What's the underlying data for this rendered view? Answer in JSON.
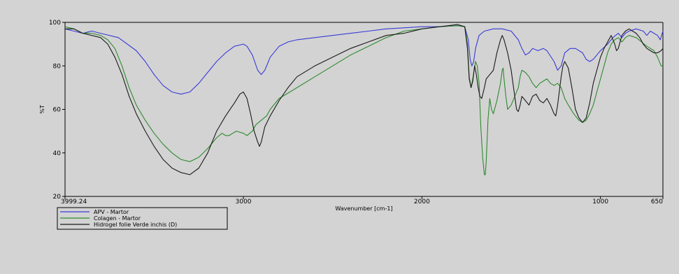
{
  "chart_data": {
    "type": "line",
    "title": "",
    "xlabel": "Wavenumber [cm-1]",
    "ylabel": "%T",
    "x_reversed": true,
    "xlim": [
      3999.24,
      650
    ],
    "ylim": [
      20,
      100
    ],
    "x_ticks": [
      {
        "value": 3999.24,
        "label": "3999.24"
      },
      {
        "value": 3000,
        "label": "3000"
      },
      {
        "value": 2000,
        "label": "2000"
      },
      {
        "value": 1000,
        "label": "1000"
      },
      {
        "value": 650,
        "label": "650"
      }
    ],
    "y_ticks": [
      {
        "value": 20,
        "label": "20"
      },
      {
        "value": 40,
        "label": "40"
      },
      {
        "value": 60,
        "label": "60"
      },
      {
        "value": 80,
        "label": "80"
      },
      {
        "value": 100,
        "label": "100"
      }
    ],
    "grid": false,
    "legend_position": "below-left",
    "series": [
      {
        "name": "APV - Martor",
        "color": "#3a3ad8",
        "points": [
          [
            3999,
            97
          ],
          [
            3950,
            96
          ],
          [
            3900,
            95
          ],
          [
            3850,
            96
          ],
          [
            3800,
            95
          ],
          [
            3700,
            93
          ],
          [
            3600,
            87
          ],
          [
            3550,
            82
          ],
          [
            3500,
            76
          ],
          [
            3450,
            71
          ],
          [
            3400,
            68
          ],
          [
            3350,
            67
          ],
          [
            3300,
            68
          ],
          [
            3250,
            72
          ],
          [
            3200,
            77
          ],
          [
            3150,
            82
          ],
          [
            3100,
            86
          ],
          [
            3050,
            89
          ],
          [
            3000,
            90
          ],
          [
            2980,
            89
          ],
          [
            2950,
            85
          ],
          [
            2920,
            78
          ],
          [
            2900,
            76
          ],
          [
            2880,
            78
          ],
          [
            2850,
            84
          ],
          [
            2800,
            89
          ],
          [
            2750,
            91
          ],
          [
            2700,
            92
          ],
          [
            2600,
            93
          ],
          [
            2500,
            94
          ],
          [
            2400,
            95
          ],
          [
            2300,
            96
          ],
          [
            2200,
            97
          ],
          [
            2100,
            97.5
          ],
          [
            2000,
            98
          ],
          [
            1900,
            98
          ],
          [
            1800,
            98.5
          ],
          [
            1760,
            98
          ],
          [
            1740,
            92
          ],
          [
            1730,
            83
          ],
          [
            1720,
            80
          ],
          [
            1710,
            82
          ],
          [
            1700,
            88
          ],
          [
            1680,
            94
          ],
          [
            1650,
            96
          ],
          [
            1600,
            97
          ],
          [
            1550,
            97
          ],
          [
            1500,
            96
          ],
          [
            1460,
            92
          ],
          [
            1440,
            88
          ],
          [
            1420,
            85
          ],
          [
            1400,
            86
          ],
          [
            1380,
            88
          ],
          [
            1350,
            87
          ],
          [
            1320,
            88
          ],
          [
            1300,
            87
          ],
          [
            1260,
            82
          ],
          [
            1240,
            78
          ],
          [
            1220,
            80
          ],
          [
            1200,
            86
          ],
          [
            1170,
            88
          ],
          [
            1140,
            88
          ],
          [
            1100,
            86
          ],
          [
            1080,
            83
          ],
          [
            1060,
            82
          ],
          [
            1040,
            83
          ],
          [
            1020,
            85
          ],
          [
            1000,
            87
          ],
          [
            960,
            90
          ],
          [
            930,
            93
          ],
          [
            900,
            95
          ],
          [
            880,
            93
          ],
          [
            860,
            95
          ],
          [
            840,
            96
          ],
          [
            800,
            97
          ],
          [
            760,
            96
          ],
          [
            740,
            94
          ],
          [
            720,
            96
          ],
          [
            700,
            95
          ],
          [
            680,
            94
          ],
          [
            665,
            92
          ],
          [
            650,
            96
          ]
        ]
      },
      {
        "name": "Colagen - Martor",
        "color": "#2e8a2e",
        "points": [
          [
            3999,
            98
          ],
          [
            3950,
            97
          ],
          [
            3900,
            95
          ],
          [
            3850,
            95
          ],
          [
            3800,
            94
          ],
          [
            3760,
            92
          ],
          [
            3720,
            88
          ],
          [
            3680,
            80
          ],
          [
            3640,
            70
          ],
          [
            3600,
            62
          ],
          [
            3550,
            55
          ],
          [
            3500,
            49
          ],
          [
            3450,
            44
          ],
          [
            3400,
            40
          ],
          [
            3350,
            37
          ],
          [
            3300,
            36
          ],
          [
            3250,
            38
          ],
          [
            3200,
            42
          ],
          [
            3150,
            47
          ],
          [
            3120,
            49
          ],
          [
            3100,
            48
          ],
          [
            3080,
            48
          ],
          [
            3060,
            49
          ],
          [
            3040,
            50
          ],
          [
            3000,
            49
          ],
          [
            2980,
            48
          ],
          [
            2950,
            50
          ],
          [
            2930,
            53
          ],
          [
            2900,
            55
          ],
          [
            2870,
            57
          ],
          [
            2850,
            60
          ],
          [
            2800,
            65
          ],
          [
            2700,
            70
          ],
          [
            2600,
            75
          ],
          [
            2500,
            80
          ],
          [
            2400,
            85
          ],
          [
            2300,
            89
          ],
          [
            2200,
            93
          ],
          [
            2100,
            96
          ],
          [
            2000,
            97
          ],
          [
            1900,
            98
          ],
          [
            1800,
            98.5
          ],
          [
            1760,
            98
          ],
          [
            1745,
            90
          ],
          [
            1735,
            75
          ],
          [
            1725,
            70
          ],
          [
            1715,
            74
          ],
          [
            1700,
            82
          ],
          [
            1690,
            80
          ],
          [
            1680,
            72
          ],
          [
            1670,
            52
          ],
          [
            1660,
            38
          ],
          [
            1650,
            30
          ],
          [
            1645,
            30
          ],
          [
            1640,
            36
          ],
          [
            1630,
            55
          ],
          [
            1620,
            65
          ],
          [
            1610,
            60
          ],
          [
            1600,
            58
          ],
          [
            1580,
            64
          ],
          [
            1560,
            72
          ],
          [
            1550,
            78
          ],
          [
            1545,
            79
          ],
          [
            1540,
            74
          ],
          [
            1530,
            66
          ],
          [
            1520,
            60
          ],
          [
            1500,
            62
          ],
          [
            1480,
            66
          ],
          [
            1460,
            70
          ],
          [
            1450,
            75
          ],
          [
            1440,
            78
          ],
          [
            1420,
            77
          ],
          [
            1400,
            75
          ],
          [
            1380,
            72
          ],
          [
            1360,
            70
          ],
          [
            1340,
            72
          ],
          [
            1320,
            73
          ],
          [
            1300,
            74
          ],
          [
            1280,
            72
          ],
          [
            1260,
            71
          ],
          [
            1240,
            72
          ],
          [
            1220,
            70
          ],
          [
            1200,
            65
          ],
          [
            1180,
            62
          ],
          [
            1150,
            58
          ],
          [
            1120,
            55
          ],
          [
            1100,
            54
          ],
          [
            1080,
            55
          ],
          [
            1060,
            58
          ],
          [
            1040,
            62
          ],
          [
            1020,
            68
          ],
          [
            1000,
            74
          ],
          [
            980,
            80
          ],
          [
            960,
            86
          ],
          [
            940,
            90
          ],
          [
            920,
            92
          ],
          [
            900,
            93
          ],
          [
            880,
            91
          ],
          [
            860,
            93
          ],
          [
            840,
            94
          ],
          [
            800,
            93
          ],
          [
            770,
            91
          ],
          [
            740,
            89
          ],
          [
            720,
            88
          ],
          [
            700,
            87
          ],
          [
            680,
            84
          ],
          [
            660,
            80
          ],
          [
            650,
            80
          ]
        ]
      },
      {
        "name": "Hidrogel folie Verde inchis (D)",
        "color": "#1a1a1a",
        "points": [
          [
            3999,
            97
          ],
          [
            3950,
            97
          ],
          [
            3900,
            95
          ],
          [
            3850,
            94
          ],
          [
            3800,
            93
          ],
          [
            3760,
            90
          ],
          [
            3720,
            84
          ],
          [
            3680,
            76
          ],
          [
            3640,
            66
          ],
          [
            3600,
            58
          ],
          [
            3550,
            50
          ],
          [
            3500,
            43
          ],
          [
            3450,
            37
          ],
          [
            3400,
            33
          ],
          [
            3350,
            31
          ],
          [
            3300,
            30
          ],
          [
            3250,
            33
          ],
          [
            3200,
            40
          ],
          [
            3150,
            50
          ],
          [
            3100,
            57
          ],
          [
            3050,
            63
          ],
          [
            3020,
            67
          ],
          [
            3000,
            68
          ],
          [
            2980,
            65
          ],
          [
            2960,
            58
          ],
          [
            2940,
            50
          ],
          [
            2920,
            45
          ],
          [
            2910,
            43
          ],
          [
            2900,
            45
          ],
          [
            2880,
            52
          ],
          [
            2850,
            57
          ],
          [
            2800,
            64
          ],
          [
            2750,
            70
          ],
          [
            2700,
            75
          ],
          [
            2600,
            80
          ],
          [
            2500,
            84
          ],
          [
            2400,
            88
          ],
          [
            2300,
            91
          ],
          [
            2200,
            94
          ],
          [
            2100,
            95
          ],
          [
            2000,
            97
          ],
          [
            1900,
            98
          ],
          [
            1800,
            99
          ],
          [
            1760,
            98
          ],
          [
            1745,
            88
          ],
          [
            1735,
            74
          ],
          [
            1725,
            70
          ],
          [
            1715,
            73
          ],
          [
            1705,
            80
          ],
          [
            1695,
            76
          ],
          [
            1685,
            70
          ],
          [
            1675,
            66
          ],
          [
            1665,
            65
          ],
          [
            1650,
            70
          ],
          [
            1640,
            74
          ],
          [
            1620,
            76
          ],
          [
            1600,
            78
          ],
          [
            1580,
            86
          ],
          [
            1560,
            92
          ],
          [
            1550,
            94
          ],
          [
            1540,
            92
          ],
          [
            1520,
            86
          ],
          [
            1500,
            78
          ],
          [
            1480,
            66
          ],
          [
            1470,
            60
          ],
          [
            1460,
            59
          ],
          [
            1450,
            62
          ],
          [
            1440,
            66
          ],
          [
            1420,
            64
          ],
          [
            1400,
            62
          ],
          [
            1380,
            66
          ],
          [
            1360,
            67
          ],
          [
            1340,
            64
          ],
          [
            1320,
            63
          ],
          [
            1300,
            65
          ],
          [
            1280,
            62
          ],
          [
            1260,
            58
          ],
          [
            1250,
            57
          ],
          [
            1240,
            62
          ],
          [
            1220,
            75
          ],
          [
            1210,
            80
          ],
          [
            1200,
            82
          ],
          [
            1180,
            79
          ],
          [
            1160,
            70
          ],
          [
            1140,
            60
          ],
          [
            1120,
            56
          ],
          [
            1100,
            54
          ],
          [
            1080,
            56
          ],
          [
            1060,
            63
          ],
          [
            1040,
            72
          ],
          [
            1020,
            78
          ],
          [
            1000,
            84
          ],
          [
            980,
            88
          ],
          [
            960,
            91
          ],
          [
            940,
            94
          ],
          [
            920,
            90
          ],
          [
            910,
            87
          ],
          [
            900,
            88
          ],
          [
            880,
            94
          ],
          [
            860,
            96
          ],
          [
            840,
            97
          ],
          [
            820,
            96
          ],
          [
            800,
            95
          ],
          [
            780,
            93
          ],
          [
            760,
            90
          ],
          [
            740,
            88
          ],
          [
            720,
            87
          ],
          [
            700,
            86
          ],
          [
            680,
            86
          ],
          [
            660,
            87
          ],
          [
            650,
            88
          ]
        ]
      }
    ]
  }
}
